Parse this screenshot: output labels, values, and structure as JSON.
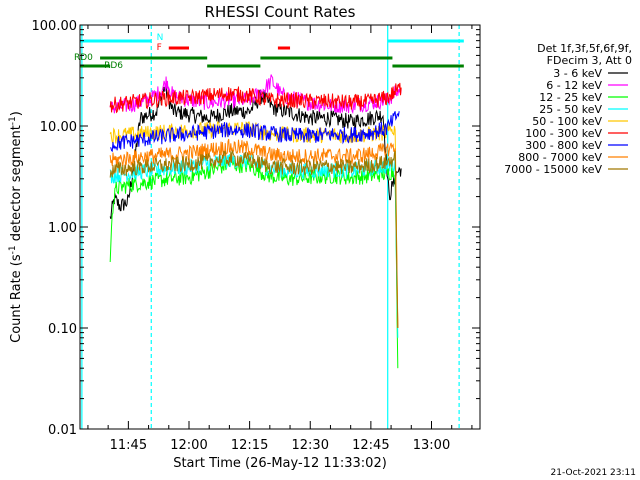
{
  "chart_data": {
    "type": "line",
    "title": "RHESSI Count Rates",
    "xlabel": "Start Time (26-May-12 11:33:02)",
    "ylabel_main": "Count Rate (s",
    "ylabel_sup1": "-1",
    "ylabel_mid": " detector segment",
    "ylabel_sup2": "-1",
    "ylabel_end": ")",
    "x_scale": "time",
    "x_range": [
      "11:33:02",
      "13:12:00"
    ],
    "y_scale": "log",
    "ylim": [
      0.01,
      100
    ],
    "y_ticks": [
      {
        "value": 0.01,
        "label": "0.01"
      },
      {
        "value": 0.1,
        "label": "0.10"
      },
      {
        "value": 1,
        "label": "1.00"
      },
      {
        "value": 10,
        "label": "10.00"
      },
      {
        "value": 100,
        "label": "100.00"
      }
    ],
    "x_ticks": [
      {
        "time": "11:45",
        "label": "11:45"
      },
      {
        "time": "12:00",
        "label": "12:00"
      },
      {
        "time": "12:15",
        "label": "12:15"
      },
      {
        "time": "12:30",
        "label": "12:30"
      },
      {
        "time": "12:45",
        "label": "12:45"
      },
      {
        "time": "13:00",
        "label": "13:00"
      }
    ],
    "legend": {
      "placement": "right",
      "header": [
        "Det 1f,3f,5f,6f,9f,",
        "FDecim 3, Att 0"
      ]
    },
    "series": [
      {
        "name": "3 - 6 keV",
        "color": "#000000",
        "points": [
          [
            "11:40:30",
            1.2
          ],
          [
            "11:41:30",
            1.9
          ],
          [
            "11:43:00",
            1.6
          ],
          [
            "11:45:00",
            1.8
          ],
          [
            "11:48:00",
            12
          ],
          [
            "11:52:00",
            14
          ],
          [
            "11:54:00",
            24
          ],
          [
            "11:56:00",
            14
          ],
          [
            "12:00:00",
            13
          ],
          [
            "12:05:00",
            12
          ],
          [
            "12:10:00",
            14
          ],
          [
            "12:15:00",
            14
          ],
          [
            "12:18:00",
            20
          ],
          [
            "12:21:00",
            15
          ],
          [
            "12:24:00",
            14
          ],
          [
            "12:30:00",
            12
          ],
          [
            "12:35:00",
            12
          ],
          [
            "12:40:00",
            11
          ],
          [
            "12:45:00",
            12
          ],
          [
            "12:48:00",
            13
          ],
          [
            "12:49:30",
            2.0
          ],
          [
            "12:51:30",
            3.5
          ],
          [
            "12:52:30",
            3.8
          ]
        ]
      },
      {
        "name": "6 - 12 keV",
        "color": "#ff00ff",
        "points": [
          [
            "11:40:30",
            15
          ],
          [
            "11:45:00",
            16
          ],
          [
            "11:50:00",
            18
          ],
          [
            "11:53:00",
            22
          ],
          [
            "11:54:30",
            28
          ],
          [
            "11:56:00",
            20
          ],
          [
            "12:00:00",
            18
          ],
          [
            "12:05:00",
            17
          ],
          [
            "12:10:00",
            18
          ],
          [
            "12:15:00",
            18
          ],
          [
            "12:18:00",
            22
          ],
          [
            "12:20:30",
            28
          ],
          [
            "12:23:00",
            20
          ],
          [
            "12:30:00",
            17
          ],
          [
            "12:35:00",
            16
          ],
          [
            "12:40:00",
            16
          ],
          [
            "12:45:00",
            17
          ],
          [
            "12:49:00",
            18
          ],
          [
            "12:51:30",
            22
          ],
          [
            "12:52:30",
            23
          ]
        ]
      },
      {
        "name": "12 - 25 keV",
        "color": "#00ff00",
        "points": [
          [
            "11:40:30",
            0.45
          ],
          [
            "11:41:00",
            1.5
          ],
          [
            "11:42:00",
            2.4
          ],
          [
            "11:45:00",
            2.6
          ],
          [
            "11:50:00",
            2.8
          ],
          [
            "11:55:00",
            3.0
          ],
          [
            "12:00:00",
            3.1
          ],
          [
            "12:05:00",
            3.6
          ],
          [
            "12:10:00",
            4.2
          ],
          [
            "12:15:00",
            4.0
          ],
          [
            "12:20:00",
            3.2
          ],
          [
            "12:25:00",
            3.0
          ],
          [
            "12:30:00",
            3.1
          ],
          [
            "12:35:00",
            3.2
          ],
          [
            "12:40:00",
            3.1
          ],
          [
            "12:45:00",
            3.2
          ],
          [
            "12:49:00",
            3.4
          ],
          [
            "12:51:00",
            3.6
          ],
          [
            "12:51:40",
            0.04
          ]
        ]
      },
      {
        "name": "25 - 50 keV",
        "color": "#00ffff",
        "points": [
          [
            "11:40:30",
            3.2
          ],
          [
            "11:45:00",
            3.4
          ],
          [
            "11:50:00",
            3.6
          ],
          [
            "11:55:00",
            3.8
          ],
          [
            "12:00:00",
            3.9
          ],
          [
            "12:05:00",
            4.3
          ],
          [
            "12:10:00",
            4.6
          ],
          [
            "12:15:00",
            4.5
          ],
          [
            "12:20:00",
            3.8
          ],
          [
            "12:25:00",
            3.6
          ],
          [
            "12:30:00",
            3.6
          ],
          [
            "12:35:00",
            3.7
          ],
          [
            "12:40:00",
            3.6
          ],
          [
            "12:45:00",
            3.8
          ],
          [
            "12:49:00",
            4.0
          ],
          [
            "12:51:00",
            4.2
          ],
          [
            "12:51:40",
            0.08
          ]
        ]
      },
      {
        "name": "50 - 100 keV",
        "color": "#ffc800",
        "points": [
          [
            "11:40:30",
            8.0
          ],
          [
            "11:45:00",
            8.2
          ],
          [
            "11:50:00",
            8.5
          ],
          [
            "11:55:00",
            8.8
          ],
          [
            "12:00:00",
            9.0
          ],
          [
            "12:05:00",
            9.2
          ],
          [
            "12:10:00",
            9.5
          ],
          [
            "12:15:00",
            9.4
          ],
          [
            "12:20:00",
            8.4
          ],
          [
            "12:25:00",
            8.2
          ],
          [
            "12:30:00",
            8.1
          ],
          [
            "12:35:00",
            8.2
          ],
          [
            "12:40:00",
            8.0
          ],
          [
            "12:45:00",
            8.3
          ],
          [
            "12:49:00",
            8.6
          ],
          [
            "12:51:00",
            9.5
          ],
          [
            "12:51:40",
            0.1
          ]
        ]
      },
      {
        "name": "100 - 300 keV",
        "color": "#ff0000",
        "points": [
          [
            "11:40:30",
            16
          ],
          [
            "11:45:00",
            17
          ],
          [
            "11:50:00",
            18
          ],
          [
            "11:55:00",
            19
          ],
          [
            "12:00:00",
            19
          ],
          [
            "12:05:00",
            20
          ],
          [
            "12:10:00",
            21
          ],
          [
            "12:15:00",
            20
          ],
          [
            "12:20:00",
            18
          ],
          [
            "12:25:00",
            18
          ],
          [
            "12:30:00",
            17.5
          ],
          [
            "12:35:00",
            17.5
          ],
          [
            "12:40:00",
            17
          ],
          [
            "12:45:00",
            17.5
          ],
          [
            "12:49:00",
            19
          ],
          [
            "12:51:00",
            22
          ],
          [
            "12:52:30",
            24
          ]
        ]
      },
      {
        "name": "300 - 800 keV",
        "color": "#0000ff",
        "points": [
          [
            "11:40:30",
            6.5
          ],
          [
            "11:45:00",
            7.0
          ],
          [
            "11:50:00",
            7.5
          ],
          [
            "11:55:00",
            8.0
          ],
          [
            "12:00:00",
            8.4
          ],
          [
            "12:05:00",
            8.8
          ],
          [
            "12:10:00",
            9.2
          ],
          [
            "12:15:00",
            9.0
          ],
          [
            "12:20:00",
            8.4
          ],
          [
            "12:25:00",
            8.1
          ],
          [
            "12:30:00",
            8.0
          ],
          [
            "12:35:00",
            8.2
          ],
          [
            "12:40:00",
            8.2
          ],
          [
            "12:45:00",
            8.6
          ],
          [
            "12:49:00",
            9.5
          ],
          [
            "12:51:00",
            12
          ],
          [
            "12:52:00",
            14
          ]
        ]
      },
      {
        "name": "800 - 7000 keV",
        "color": "#ff8000",
        "points": [
          [
            "11:40:30",
            4.5
          ],
          [
            "11:45:00",
            4.8
          ],
          [
            "11:50:00",
            5.0
          ],
          [
            "11:55:00",
            5.2
          ],
          [
            "12:00:00",
            5.4
          ],
          [
            "12:05:00",
            5.8
          ],
          [
            "12:10:00",
            6.2
          ],
          [
            "12:15:00",
            6.0
          ],
          [
            "12:20:00",
            5.2
          ],
          [
            "12:25:00",
            5.0
          ],
          [
            "12:30:00",
            5.0
          ],
          [
            "12:35:00",
            5.1
          ],
          [
            "12:40:00",
            5.0
          ],
          [
            "12:45:00",
            5.3
          ],
          [
            "12:49:00",
            5.8
          ],
          [
            "12:51:00",
            6.5
          ],
          [
            "12:51:40",
            0.1
          ]
        ]
      },
      {
        "name": "7000 - 15000 keV",
        "color": "#a07800",
        "points": [
          [
            "11:40:30",
            3.6
          ],
          [
            "11:45:00",
            3.8
          ],
          [
            "11:50:00",
            4.0
          ],
          [
            "11:55:00",
            4.1
          ],
          [
            "12:00:00",
            4.2
          ],
          [
            "12:05:00",
            4.5
          ],
          [
            "12:10:00",
            4.8
          ],
          [
            "12:15:00",
            4.6
          ],
          [
            "12:20:00",
            4.0
          ],
          [
            "12:25:00",
            3.9
          ],
          [
            "12:30:00",
            3.9
          ],
          [
            "12:35:00",
            4.0
          ],
          [
            "12:40:00",
            3.9
          ],
          [
            "12:45:00",
            4.1
          ],
          [
            "12:49:00",
            4.4
          ],
          [
            "12:51:00",
            4.8
          ],
          [
            "12:51:40",
            0.1
          ]
        ]
      }
    ],
    "vertical_markers": [
      {
        "time": "11:33:30",
        "color": "#00ffff",
        "style": "solid"
      },
      {
        "time": "11:50:40",
        "color": "#00ffff",
        "style": "dashed"
      },
      {
        "time": "12:49:10",
        "color": "#00ffff",
        "style": "solid"
      },
      {
        "time": "13:06:50",
        "color": "#00ffff",
        "style": "dashed"
      }
    ],
    "flag_bars": [
      {
        "label": "N",
        "label_color": "#00ffff",
        "color": "#00ffff",
        "segments": [
          [
            "11:33:02",
            "11:50:40"
          ],
          [
            "12:49:10",
            "13:08:00"
          ]
        ],
        "label_at": "11:52:00",
        "level": 1
      },
      {
        "label": "F",
        "label_color": "#ff0000",
        "color": "#ff0000",
        "segments": [
          [
            "11:55:00",
            "12:00:00"
          ],
          [
            "12:22:00",
            "12:25:00"
          ]
        ],
        "label_at": "11:52:00",
        "level": 2
      },
      {
        "label": "RD0",
        "label_color": "#008000",
        "color": "#008000",
        "segments": [
          [
            "11:38:00",
            "12:04:30"
          ],
          [
            "12:17:40",
            "12:50:20"
          ]
        ],
        "label_at": "11:33:02",
        "level": 3
      },
      {
        "label": "RD6",
        "label_color": "#008000",
        "color": "#008000",
        "segments": [
          [
            "11:33:02",
            "11:40:30"
          ],
          [
            "12:04:30",
            "12:17:40"
          ],
          [
            "12:50:20",
            "13:08:00"
          ]
        ],
        "label_at": "11:39:00",
        "level": 4
      }
    ],
    "footer_date": "21-Oct-2021 23:11"
  }
}
